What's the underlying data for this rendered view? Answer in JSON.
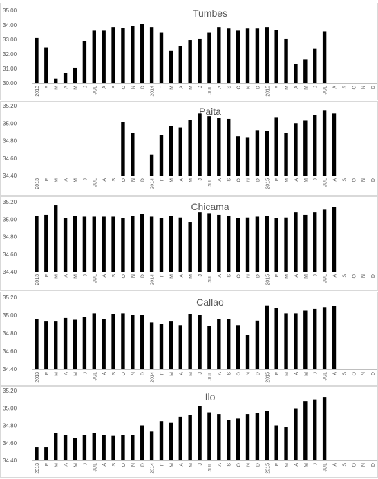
{
  "chart_data": [
    {
      "type": "bar",
      "title": "Tumbes",
      "ylim": [
        30.0,
        35.0
      ],
      "yticks": [
        "30.00",
        "31.00",
        "32.00",
        "33.00",
        "34.00",
        "35.00"
      ],
      "categories": [
        "2013",
        "F",
        "M",
        "A",
        "M",
        "J",
        "JUL",
        "A",
        "S",
        "O",
        "N",
        "D",
        "2014",
        "F",
        "M",
        "A",
        "M",
        "J",
        "JUL",
        "A",
        "S",
        "O",
        "N",
        "D",
        "2015",
        "F",
        "M",
        "A",
        "M",
        "J",
        "JUL",
        "A",
        "S",
        "O",
        "N",
        "D"
      ],
      "values": [
        33.1,
        32.45,
        30.3,
        30.7,
        31.05,
        32.9,
        33.6,
        33.6,
        33.85,
        33.8,
        33.95,
        34.05,
        33.85,
        33.45,
        32.2,
        32.55,
        32.95,
        33.05,
        33.45,
        33.85,
        33.75,
        33.6,
        33.75,
        33.75,
        33.85,
        33.65,
        33.05,
        31.3,
        31.6,
        32.35,
        33.55,
        null,
        null,
        null,
        null,
        null
      ],
      "bar_color": "#000000",
      "grid": false
    },
    {
      "type": "bar",
      "title": "Paita",
      "ylim": [
        34.4,
        35.2
      ],
      "yticks": [
        "34.40",
        "34.60",
        "34.80",
        "35.00",
        "35.20"
      ],
      "categories": [
        "2013",
        "F",
        "M",
        "A",
        "M",
        "J",
        "JUL",
        "A",
        "S",
        "O",
        "N",
        "D",
        "2014",
        "F",
        "M",
        "A",
        "M",
        "J",
        "JUL",
        "A",
        "S",
        "O",
        "N",
        "D",
        "2015",
        "F",
        "M",
        "A",
        "M",
        "J",
        "JUL",
        "A",
        "S",
        "O",
        "N",
        "D"
      ],
      "values": [
        null,
        null,
        null,
        null,
        null,
        null,
        null,
        null,
        null,
        35.01,
        34.89,
        null,
        34.64,
        34.86,
        34.97,
        34.95,
        35.04,
        35.11,
        35.08,
        35.06,
        35.05,
        34.85,
        34.84,
        34.92,
        34.91,
        35.07,
        34.89,
        35.0,
        35.03,
        35.09,
        35.15,
        35.11,
        null,
        null,
        null,
        null
      ],
      "bar_color": "#000000",
      "grid": false
    },
    {
      "type": "bar",
      "title": "Chicama",
      "ylim": [
        34.4,
        35.2
      ],
      "yticks": [
        "34.40",
        "34.60",
        "34.80",
        "35.00",
        "35.20"
      ],
      "categories": [
        "2013",
        "F",
        "M",
        "A",
        "M",
        "J",
        "JUL",
        "A",
        "S",
        "O",
        "N",
        "D",
        "2014",
        "F",
        "M",
        "A",
        "M",
        "J",
        "JUL",
        "A",
        "S",
        "O",
        "N",
        "D",
        "2015",
        "F",
        "M",
        "A",
        "M",
        "J",
        "JUL",
        "A",
        "S",
        "O",
        "N",
        "D"
      ],
      "values": [
        35.04,
        35.05,
        35.16,
        35.01,
        35.04,
        35.03,
        35.03,
        35.03,
        35.03,
        35.01,
        35.04,
        35.06,
        35.03,
        35.01,
        35.04,
        35.02,
        34.97,
        35.08,
        35.07,
        35.05,
        35.04,
        35.01,
        35.02,
        35.03,
        35.04,
        35.01,
        35.02,
        35.08,
        35.05,
        35.08,
        35.11,
        35.14,
        null,
        null,
        null,
        null
      ],
      "bar_color": "#000000",
      "grid": false
    },
    {
      "type": "bar",
      "title": "Callao",
      "ylim": [
        34.4,
        35.2
      ],
      "yticks": [
        "34.40",
        "34.60",
        "34.80",
        "35.00",
        "35.20"
      ],
      "categories": [
        "2013",
        "F",
        "M",
        "A",
        "M",
        "J",
        "JUL",
        "A",
        "S",
        "O",
        "N",
        "D",
        "2014",
        "F",
        "M",
        "A",
        "M",
        "J",
        "JUL",
        "A",
        "S",
        "O",
        "N",
        "D",
        "2015",
        "F",
        "M",
        "A",
        "M",
        "J",
        "JUL",
        "A",
        "S",
        "O",
        "N",
        "D"
      ],
      "values": [
        34.96,
        34.93,
        34.93,
        34.97,
        34.95,
        34.98,
        35.02,
        34.96,
        35.01,
        35.02,
        35.0,
        35.0,
        34.92,
        34.9,
        34.93,
        34.89,
        35.01,
        35.0,
        34.88,
        34.96,
        34.96,
        34.89,
        34.78,
        34.94,
        35.11,
        35.08,
        35.02,
        35.02,
        35.05,
        35.07,
        35.09,
        35.1,
        null,
        null,
        null,
        null
      ],
      "bar_color": "#000000",
      "grid": false
    },
    {
      "type": "bar",
      "title": "Ilo",
      "ylim": [
        34.4,
        35.2
      ],
      "yticks": [
        "34.40",
        "34.60",
        "34.80",
        "35.00",
        "35.20"
      ],
      "categories": [
        "2013",
        "F",
        "M",
        "A",
        "M",
        "J",
        "JUL",
        "A",
        "S",
        "O",
        "N",
        "D",
        "2014",
        "F",
        "M",
        "A",
        "M",
        "J",
        "JUL",
        "A",
        "S",
        "O",
        "N",
        "D",
        "2015",
        "F",
        "M",
        "A",
        "M",
        "J",
        "JUL",
        "A",
        "S",
        "O",
        "N",
        "D"
      ],
      "values": [
        34.55,
        34.55,
        34.71,
        34.69,
        34.66,
        34.69,
        34.71,
        34.69,
        34.68,
        34.69,
        34.69,
        34.8,
        34.73,
        34.85,
        34.83,
        34.9,
        34.92,
        35.02,
        34.95,
        34.93,
        34.86,
        34.88,
        34.93,
        34.94,
        34.97,
        34.8,
        34.78,
        34.99,
        35.08,
        35.1,
        35.12,
        null,
        null,
        null,
        null,
        null
      ],
      "bar_color": "#000000",
      "grid": false
    }
  ]
}
